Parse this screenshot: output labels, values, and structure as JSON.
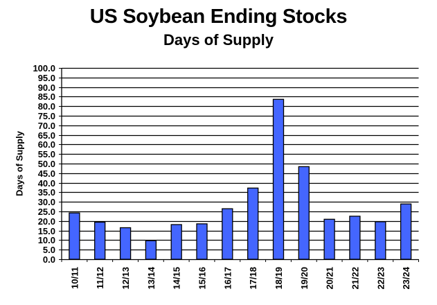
{
  "chart_data": {
    "type": "bar",
    "title": "US Soybean Ending Stocks",
    "subtitle": "Days of Supply",
    "xlabel": "",
    "ylabel": "Days of Supply",
    "ylim": [
      0,
      100
    ],
    "ytick_step": 5,
    "ytick_labels": [
      "0.0",
      "5.0",
      "10.0",
      "15.0",
      "20.0",
      "25.0",
      "30.0",
      "35.0",
      "40.0",
      "45.0",
      "50.0",
      "55.0",
      "60.0",
      "65.0",
      "70.0",
      "75.0",
      "80.0",
      "85.0",
      "90.0",
      "95.0",
      "100.0"
    ],
    "grid": true,
    "legend": null,
    "categories": [
      "10/11",
      "11/12",
      "12/13",
      "13/14",
      "14/15",
      "15/16",
      "16/17",
      "17/18",
      "18/19",
      "19/20",
      "20/21",
      "21/22",
      "22/23",
      "23/24"
    ],
    "values": [
      24.2,
      19.4,
      16.5,
      9.7,
      18.1,
      18.5,
      26.4,
      37.2,
      83.6,
      48.4,
      20.9,
      22.5,
      19.6,
      28.9
    ],
    "bar_color": "#4466FF",
    "bar_edge_color": "#000000"
  }
}
